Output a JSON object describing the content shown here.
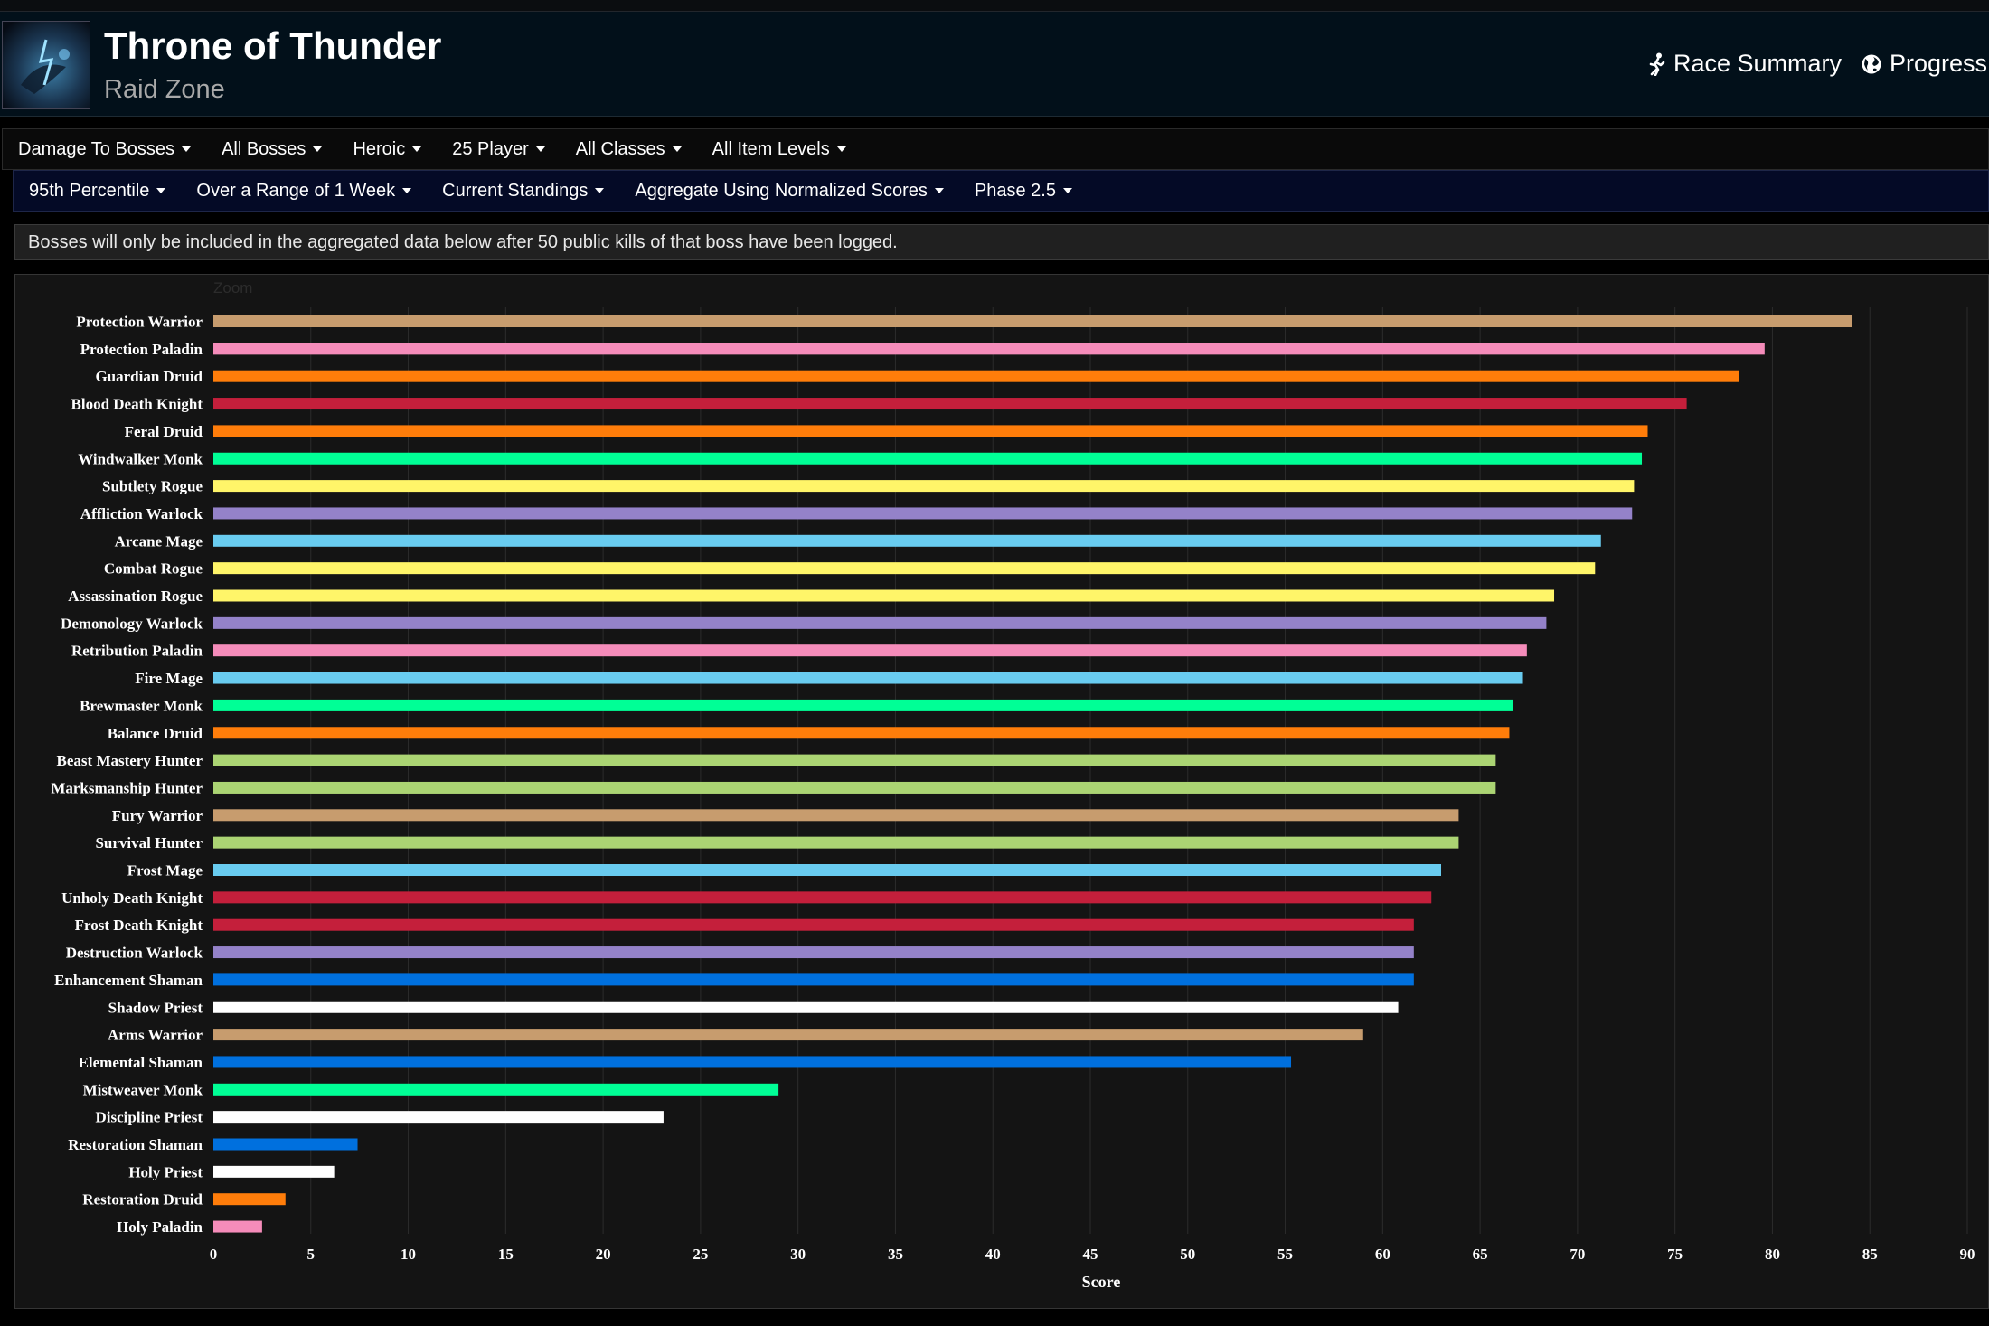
{
  "header": {
    "title": "Throne of Thunder",
    "subtitle": "Raid Zone",
    "links": {
      "race": "Race Summary",
      "progress": "Progress"
    }
  },
  "filters_row1": [
    "Damage To Bosses",
    "All Bosses",
    "Heroic",
    "25 Player",
    "All Classes",
    "All Item Levels"
  ],
  "filters_row2": [
    "95th Percentile",
    "Over a Range of 1 Week",
    "Current Standings",
    "Aggregate Using Normalized Scores",
    "Phase 2.5"
  ],
  "notice": "Bosses will only be included in the aggregated data below after 50 public kills of that boss have been logged.",
  "zoom_label": "Zoom",
  "chart_data": {
    "type": "bar",
    "orientation": "horizontal",
    "xlabel": "Score",
    "xlim": [
      0,
      90
    ],
    "xticks": [
      0,
      5,
      10,
      15,
      20,
      25,
      30,
      35,
      40,
      45,
      50,
      55,
      60,
      65,
      70,
      75,
      80,
      85,
      90
    ],
    "grid": true,
    "categories": [
      "Protection Warrior",
      "Protection Paladin",
      "Guardian Druid",
      "Blood Death Knight",
      "Feral Druid",
      "Windwalker Monk",
      "Subtlety Rogue",
      "Affliction Warlock",
      "Arcane Mage",
      "Combat Rogue",
      "Assassination Rogue",
      "Demonology Warlock",
      "Retribution Paladin",
      "Fire Mage",
      "Brewmaster Monk",
      "Balance Druid",
      "Beast Mastery Hunter",
      "Marksmanship Hunter",
      "Fury Warrior",
      "Survival Hunter",
      "Frost Mage",
      "Unholy Death Knight",
      "Frost Death Knight",
      "Destruction Warlock",
      "Enhancement Shaman",
      "Shadow Priest",
      "Arms Warrior",
      "Elemental Shaman",
      "Mistweaver Monk",
      "Discipline Priest",
      "Restoration Shaman",
      "Holy Priest",
      "Restoration Druid",
      "Holy Paladin"
    ],
    "values": [
      84.1,
      79.6,
      78.3,
      75.6,
      73.6,
      73.3,
      72.9,
      72.8,
      71.2,
      70.9,
      68.8,
      68.4,
      67.4,
      67.2,
      66.7,
      66.5,
      65.8,
      65.8,
      63.9,
      63.9,
      63.0,
      62.5,
      61.6,
      61.6,
      61.6,
      60.8,
      59.0,
      55.3,
      29.0,
      23.1,
      7.4,
      6.2,
      3.7,
      2.5
    ],
    "colors": [
      "#c79c6e",
      "#f58cba",
      "#ff7d0a",
      "#c41f3b",
      "#ff7d0a",
      "#00ff96",
      "#fff569",
      "#9482c9",
      "#69ccf0",
      "#fff569",
      "#fff569",
      "#9482c9",
      "#f58cba",
      "#69ccf0",
      "#00ff96",
      "#ff7d0a",
      "#abd473",
      "#abd473",
      "#c79c6e",
      "#abd473",
      "#69ccf0",
      "#c41f3b",
      "#c41f3b",
      "#9482c9",
      "#0070de",
      "#ffffff",
      "#c79c6e",
      "#0070de",
      "#00ff96",
      "#ffffff",
      "#0070de",
      "#ffffff",
      "#ff7d0a",
      "#f58cba"
    ]
  }
}
